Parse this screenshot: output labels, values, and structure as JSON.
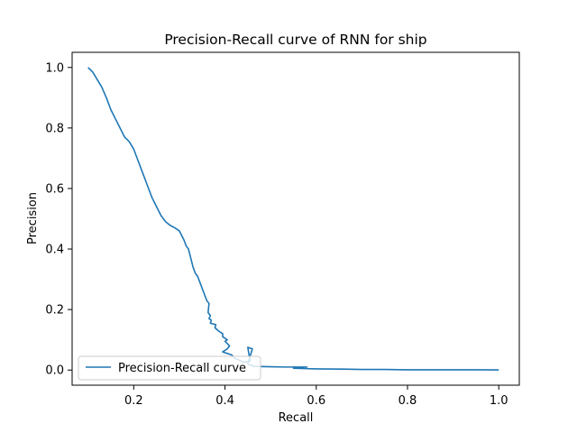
{
  "chart_data": {
    "type": "line",
    "title": "Precision-Recall curve of RNN for ship",
    "xlabel": "Recall",
    "ylabel": "Precision",
    "xlim": [
      0.065,
      1.045
    ],
    "ylim": [
      -0.05,
      1.05
    ],
    "x_ticks": [
      0.2,
      0.4,
      0.6,
      0.8,
      1.0
    ],
    "x_tick_labels": [
      "0.2",
      "0.4",
      "0.6",
      "0.8",
      "1.0"
    ],
    "y_ticks": [
      0.0,
      0.2,
      0.4,
      0.6,
      0.8,
      1.0
    ],
    "y_tick_labels": [
      "0.0",
      "0.2",
      "0.4",
      "0.6",
      "0.8",
      "1.0"
    ],
    "grid": false,
    "legend_position": "lower-left",
    "series_color": "#1f77b4",
    "series": [
      {
        "name": "Precision-Recall curve",
        "x": [
          0.1,
          0.11,
          0.12,
          0.13,
          0.14,
          0.15,
          0.16,
          0.17,
          0.18,
          0.19,
          0.2,
          0.21,
          0.22,
          0.23,
          0.24,
          0.25,
          0.26,
          0.27,
          0.28,
          0.29,
          0.3,
          0.31,
          0.315,
          0.32,
          0.325,
          0.33,
          0.335,
          0.34,
          0.345,
          0.35,
          0.355,
          0.36,
          0.365,
          0.363,
          0.368,
          0.365,
          0.37,
          0.368,
          0.38,
          0.378,
          0.385,
          0.395,
          0.395,
          0.405,
          0.4,
          0.41,
          0.405,
          0.395,
          0.415,
          0.42,
          0.435,
          0.44,
          0.455,
          0.45,
          0.46,
          0.45,
          0.465,
          0.5,
          0.53,
          0.56,
          0.58,
          0.55,
          0.6,
          0.66,
          0.7,
          0.75,
          0.8,
          0.85,
          0.9,
          0.95,
          1.0
        ],
        "y": [
          1.0,
          0.985,
          0.96,
          0.935,
          0.9,
          0.86,
          0.83,
          0.8,
          0.77,
          0.755,
          0.73,
          0.69,
          0.65,
          0.61,
          0.57,
          0.54,
          0.51,
          0.49,
          0.478,
          0.47,
          0.46,
          0.43,
          0.41,
          0.4,
          0.37,
          0.34,
          0.32,
          0.31,
          0.29,
          0.27,
          0.25,
          0.23,
          0.22,
          0.19,
          0.18,
          0.17,
          0.165,
          0.155,
          0.15,
          0.14,
          0.13,
          0.12,
          0.11,
          0.1,
          0.095,
          0.08,
          0.07,
          0.06,
          0.05,
          0.04,
          0.03,
          0.025,
          0.03,
          0.075,
          0.07,
          0.02,
          0.012,
          0.011,
          0.01,
          0.01,
          0.01,
          0.006,
          0.004,
          0.003,
          0.002,
          0.002,
          0.001,
          0.001,
          0.001,
          0.0008,
          0.0005
        ]
      }
    ]
  }
}
